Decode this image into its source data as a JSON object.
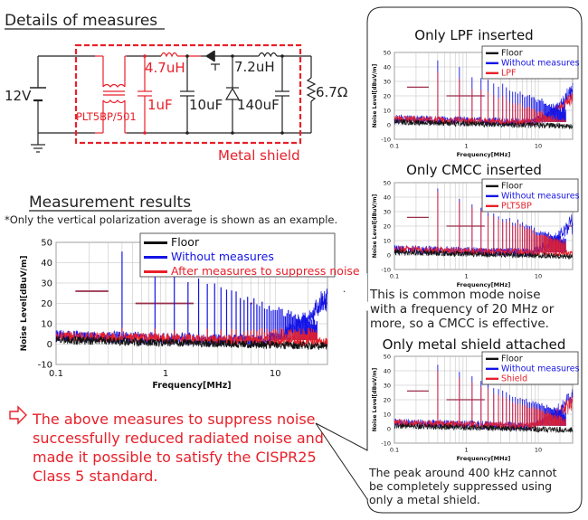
{
  "headings": {
    "details": "Details of measures",
    "results": "Measurement results",
    "note": "*Only the vertical polarization average is shown as an example."
  },
  "circuit": {
    "voltage": "12V",
    "cmcc": "PLT5BP/501",
    "inductor1": "4.7uH",
    "cap1": "1uF",
    "cap2": "10uF",
    "inductor2": "7.2uH",
    "cap3": "140uF",
    "load": "6.7Ω",
    "shield": "Metal shield"
  },
  "conclusion": {
    "lines": [
      "The above measures to suppress noise",
      "successfully reduced radiated noise and",
      "made it possible to satisfy the CISPR25",
      "Class 5 standard."
    ]
  },
  "panel": {
    "cmcc_note": [
      "This is common mode noise",
      "with a frequency of 20 MHz or",
      "more, so a CMCC is effective."
    ],
    "shield_note": [
      "The peak around 400 kHz cannot",
      "be completely suppressed using",
      "only a metal shield."
    ]
  },
  "colors": {
    "red": "#e8202a",
    "blue": "#1414e6",
    "black": "#111111",
    "limit": "#9a2f4a"
  },
  "chart_data": [
    {
      "id": "main",
      "type": "line",
      "title": "",
      "xlabel": "Frequency[MHz]",
      "ylabel": "Noise Level[dBuV/m]",
      "xscale": "log",
      "xlim": [
        0.1,
        30
      ],
      "ylim": [
        -10,
        50
      ],
      "xticks": [
        "0.1",
        "1",
        "10"
      ],
      "yticks": [
        "50",
        "40",
        "30",
        "20",
        "10",
        "0",
        "-10"
      ],
      "legend": [
        "Floor",
        "Without measures",
        "After measures to suppress noise"
      ]
    },
    {
      "id": "lpf",
      "type": "line",
      "title": "Only LPF inserted",
      "xlabel": "Frequency[MHz]",
      "ylabel": "Noise Level[dBuV/m]",
      "xscale": "log",
      "xlim": [
        0.1,
        30
      ],
      "ylim": [
        -10,
        50
      ],
      "xticks": [
        "0.1",
        "1",
        "10"
      ],
      "yticks": [
        "50",
        "40",
        "30",
        "20",
        "10",
        "0",
        "-10"
      ],
      "legend": [
        "Floor",
        "Without measures",
        "LPF"
      ]
    },
    {
      "id": "cmcc",
      "type": "line",
      "title": "Only CMCC inserted",
      "xlabel": "Frequency[MHz]",
      "ylabel": "Noise Level[dBuV/m]",
      "xscale": "log",
      "xlim": [
        0.1,
        30
      ],
      "ylim": [
        -10,
        50
      ],
      "xticks": [
        "0.1",
        "1",
        "10"
      ],
      "yticks": [
        "50",
        "40",
        "30",
        "20",
        "10",
        "0",
        "-10"
      ],
      "legend": [
        "Floor",
        "Without measures",
        "PLT5BP"
      ]
    },
    {
      "id": "shield",
      "type": "line",
      "title": "Only metal shield attached",
      "xlabel": "Frequency[MHz]",
      "ylabel": "Noise Level[dBuV/m]",
      "xscale": "log",
      "xlim": [
        0.1,
        30
      ],
      "ylim": [
        -10,
        50
      ],
      "xticks": [
        "0.1",
        "1",
        "10"
      ],
      "yticks": [
        "50",
        "40",
        "30",
        "20",
        "10",
        "0",
        "-10"
      ],
      "legend": [
        "Floor",
        "Without measures",
        "Shield"
      ]
    }
  ]
}
